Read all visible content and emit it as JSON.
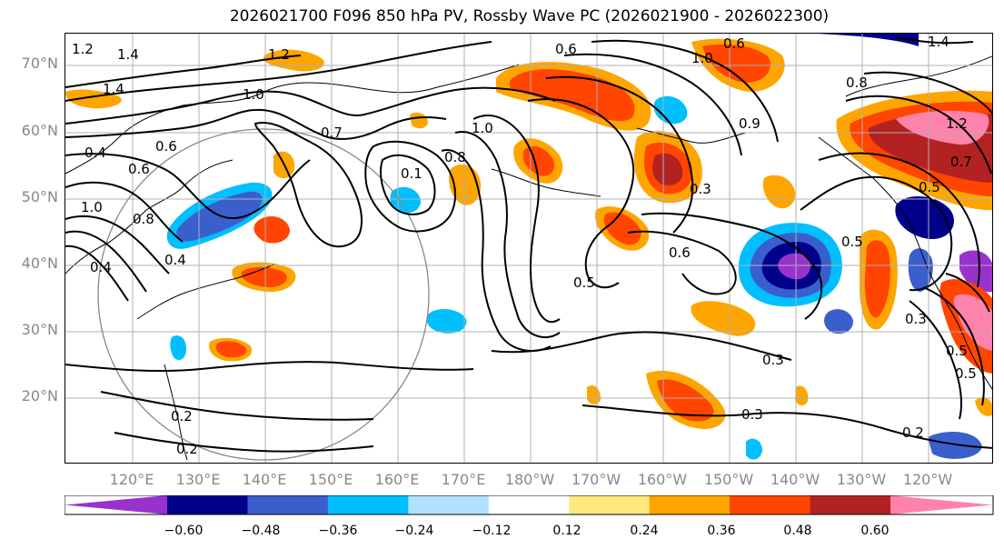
{
  "title": "2026021700 F096 850 hPa PV, Rossby Wave PC (2026021900 - 2026022300)",
  "latitude_labels": [
    "70°N",
    "60°N",
    "50°N",
    "40°N",
    "30°N",
    "20°N"
  ],
  "longitude_labels": [
    "120°E",
    "130°E",
    "140°E",
    "150°E",
    "160°E",
    "170°E",
    "180°W",
    "170°W",
    "160°W",
    "150°W",
    "140°W",
    "130°W",
    "120°W"
  ],
  "colorbar": {
    "ticks": [
      "−0.60",
      "−0.48",
      "−0.36",
      "−0.24",
      "−0.12",
      "0.12",
      "0.24",
      "0.36",
      "0.48",
      "0.60"
    ],
    "colors": [
      "#9932cc",
      "#00008b",
      "#3a5fcd",
      "#00bfff",
      "#b0e2ff",
      "#ffffff",
      "#ffe97f",
      "#ffa500",
      "#ff4500",
      "#b22222",
      "#ff82ab"
    ]
  },
  "contour_labels": [
    "1.2",
    "1.4",
    "1.4",
    "1.2",
    "1.0",
    "0.6",
    "0.6",
    "1.0",
    "0.8",
    "0.7",
    "0.4",
    "0.1",
    "0.8",
    "1.0",
    "0.3",
    "0.6",
    "0.5",
    "0.5",
    "0.3",
    "0.3",
    "0.2",
    "0.2",
    "0.2",
    "0.5",
    "0.5",
    "0.4",
    "0.6",
    "0.8",
    "0.9",
    "0.3",
    "1.2",
    "1.4",
    "1.0",
    "0.7",
    "0.6",
    "0.5",
    "0.4"
  ],
  "circle_reference": "great-circle marker"
}
